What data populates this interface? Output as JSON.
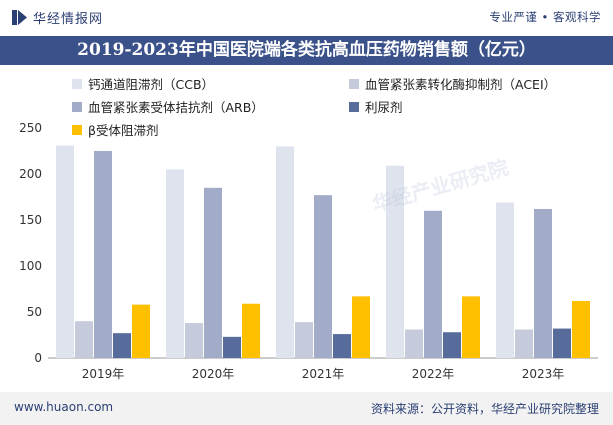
{
  "header": {
    "brand_name": "华经情报网",
    "tagline": "专业严谨 • 客观科学",
    "brand_color": "#2a3f73"
  },
  "title": "2019-2023年中国医院端各类抗高血压药物销售额（亿元）",
  "watermark_text": "华经产业研究院",
  "footer": {
    "website": "www.huaon.com",
    "source": "资料来源：公开资料，华经产业研究院整理"
  },
  "chart_data": {
    "type": "bar",
    "categories": [
      "2019年",
      "2020年",
      "2021年",
      "2022年",
      "2023年"
    ],
    "series": [
      {
        "name": "钙通道阻滞剂（CCB）",
        "color": "#dfe3ee",
        "values": [
          231,
          205,
          230,
          209,
          169
        ]
      },
      {
        "name": "血管紧张素转化酶抑制剂（ACEI）",
        "color": "#c6cbdb",
        "values": [
          40,
          38,
          39,
          31,
          31
        ]
      },
      {
        "name": "血管紧张素受体拮抗剂（ARB）",
        "color": "#a2abc8",
        "values": [
          225,
          185,
          177,
          160,
          162
        ]
      },
      {
        "name": "利尿剂",
        "color": "#586c9c",
        "values": [
          27,
          23,
          26,
          28,
          32
        ]
      },
      {
        "name": "β受体阻滞剂",
        "color": "#ffc000",
        "values": [
          58,
          59,
          67,
          67,
          62
        ]
      }
    ],
    "ylim": [
      0,
      250
    ],
    "yticks": [
      "0",
      "50",
      "100",
      "150",
      "200",
      "250"
    ],
    "grid": false,
    "legend_position": "top"
  }
}
